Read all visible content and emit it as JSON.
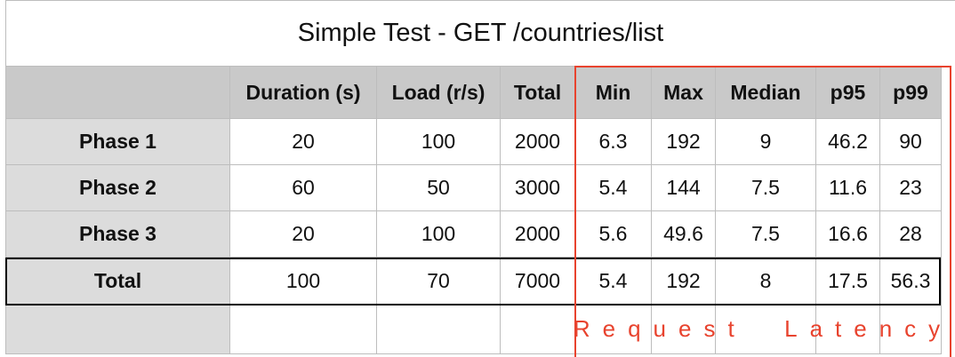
{
  "title": "Simple Test - GET /countries/list",
  "columns": [
    "",
    "Duration (s)",
    "Load (r/s)",
    "Total",
    "Min",
    "Max",
    "Median",
    "p95",
    "p99"
  ],
  "rows": [
    {
      "label": "Phase 1",
      "values": [
        "20",
        "100",
        "2000",
        "6.3",
        "192",
        "9",
        "46.2",
        "90"
      ]
    },
    {
      "label": "Phase 2",
      "values": [
        "60",
        "50",
        "3000",
        "5.4",
        "144",
        "7.5",
        "11.6",
        "23"
      ]
    },
    {
      "label": "Phase 3",
      "values": [
        "20",
        "100",
        "2000",
        "5.6",
        "49.6",
        "7.5",
        "16.6",
        "28"
      ]
    }
  ],
  "total_row": {
    "label": "Total",
    "values": [
      "100",
      "70",
      "7000",
      "5.4",
      "192",
      "8",
      "17.5",
      "56.3"
    ]
  },
  "annotation": {
    "text": "Request  Latency",
    "color": "#e8432e"
  },
  "colors": {
    "header_bg": "#c9c9c9",
    "row_label_bg": "#dcdcdc",
    "highlight": "#e8432e"
  }
}
